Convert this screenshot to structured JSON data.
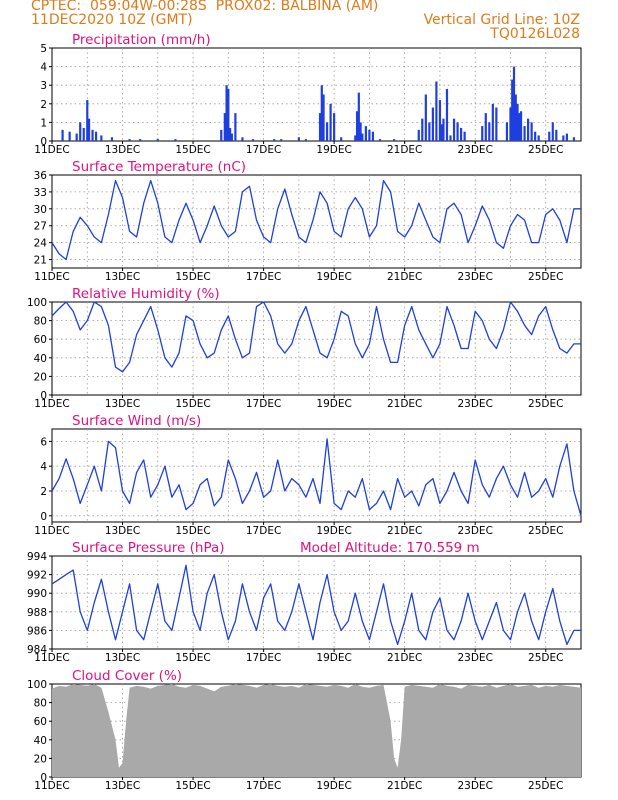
{
  "header": {
    "line1_left": "CPTEC:  059:04W-00:28S  PROX02: BALBINA (AM)",
    "line2_left": "11DEC2020 10Z (GMT)",
    "line2_right": "Vertical Grid Line: 10Z",
    "line3_right": "TQ0126L028"
  },
  "x_tick_labels": [
    "11DEC",
    "13DEC",
    "15DEC",
    "17DEC",
    "19DEC",
    "21DEC",
    "23DEC",
    "25DEC"
  ],
  "colors": {
    "series": "#1f3fe0",
    "title": "#e0127e",
    "header": "#e07a1a",
    "cloud": "#a9a9a9"
  },
  "chart_data": [
    {
      "type": "bar",
      "title": "Precipitation (mm/h)",
      "ylim": [
        0,
        5
      ],
      "yticks": [
        0,
        1,
        2,
        3,
        4,
        5
      ],
      "xlim": [
        0,
        15
      ],
      "x": [
        0.3,
        0.5,
        0.7,
        0.8,
        0.9,
        1.0,
        1.05,
        1.15,
        1.25,
        1.4,
        1.7,
        2.2,
        2.5,
        3.0,
        3.5,
        4.8,
        4.9,
        4.95,
        5.0,
        5.05,
        5.1,
        5.2,
        5.4,
        5.7,
        6.3,
        6.5,
        7.0,
        7.2,
        7.6,
        7.65,
        7.7,
        7.8,
        7.9,
        8.0,
        8.2,
        8.6,
        8.65,
        8.7,
        8.75,
        8.8,
        8.9,
        9.0,
        9.1,
        9.3,
        9.7,
        10.4,
        10.5,
        10.6,
        10.7,
        10.8,
        10.9,
        11.0,
        11.05,
        11.1,
        11.2,
        11.3,
        11.4,
        11.5,
        11.6,
        11.7,
        12.2,
        12.3,
        12.4,
        12.5,
        12.6,
        12.9,
        13.0,
        13.05,
        13.1,
        13.15,
        13.2,
        13.25,
        13.3,
        13.4,
        13.5,
        13.6,
        13.7,
        13.8,
        14.1,
        14.2,
        14.3,
        14.5,
        14.6,
        14.8
      ],
      "values": [
        0.6,
        0.5,
        0.4,
        1.0,
        0.7,
        2.2,
        1.2,
        0.6,
        0.5,
        0.3,
        0.2,
        0.1,
        0.1,
        0.1,
        0.1,
        0.6,
        1.5,
        3.0,
        2.8,
        0.7,
        0.4,
        1.5,
        0.2,
        0.1,
        0.1,
        0.1,
        0.2,
        0.1,
        1.5,
        3.0,
        2.5,
        1.0,
        2.0,
        1.5,
        0.2,
        0.3,
        1.6,
        2.6,
        1.0,
        0.4,
        0.8,
        0.6,
        0.5,
        0.1,
        0.1,
        0.6,
        1.2,
        2.5,
        1.0,
        1.8,
        3.2,
        2.2,
        0.9,
        1.2,
        2.8,
        0.3,
        1.2,
        1.0,
        0.7,
        0.5,
        0.8,
        1.5,
        1.0,
        2.0,
        1.8,
        1.0,
        1.8,
        3.3,
        4.0,
        2.5,
        2.0,
        1.5,
        1.6,
        0.8,
        1.2,
        1.0,
        0.5,
        0.3,
        0.5,
        1.0,
        0.6,
        0.3,
        0.4,
        0.2
      ]
    },
    {
      "type": "line",
      "title": "Surface Temperature (nC)",
      "ylim": [
        19.5,
        36
      ],
      "yticks": [
        21,
        24,
        27,
        30,
        33,
        36
      ],
      "x": [
        0,
        0.2,
        0.4,
        0.6,
        0.8,
        1.0,
        1.2,
        1.4,
        1.6,
        1.8,
        2.0,
        2.2,
        2.4,
        2.6,
        2.8,
        3.0,
        3.2,
        3.4,
        3.6,
        3.8,
        4.0,
        4.2,
        4.4,
        4.6,
        4.8,
        5.0,
        5.2,
        5.4,
        5.6,
        5.8,
        6.0,
        6.2,
        6.4,
        6.6,
        6.8,
        7.0,
        7.2,
        7.4,
        7.6,
        7.8,
        8.0,
        8.2,
        8.4,
        8.6,
        8.8,
        9.0,
        9.2,
        9.4,
        9.6,
        9.8,
        10.0,
        10.2,
        10.4,
        10.6,
        10.8,
        11.0,
        11.2,
        11.4,
        11.6,
        11.8,
        12.0,
        12.2,
        12.4,
        12.6,
        12.8,
        13.0,
        13.2,
        13.4,
        13.6,
        13.8,
        14.0,
        14.2,
        14.4,
        14.6,
        14.8,
        15.0
      ],
      "values": [
        24,
        22,
        21,
        26,
        28.5,
        27,
        25,
        24,
        29,
        35,
        32,
        26,
        25,
        31,
        35,
        31,
        25,
        24,
        28,
        31,
        28,
        24,
        27,
        30.5,
        27,
        25,
        26,
        33,
        34,
        28,
        25,
        24,
        30,
        33.5,
        29,
        25,
        24,
        28,
        33,
        31,
        26,
        25,
        30,
        32,
        30,
        25,
        27,
        35,
        33,
        26,
        25,
        27,
        31,
        28,
        25,
        24,
        30,
        31,
        29,
        24,
        27,
        30.5,
        28,
        24,
        23,
        27,
        29,
        28,
        24,
        24,
        29,
        30,
        28,
        24,
        30,
        30
      ]
    },
    {
      "type": "line",
      "title": "Relative Humidity (%)",
      "ylim": [
        0,
        100
      ],
      "yticks": [
        0,
        20,
        40,
        60,
        80,
        100
      ],
      "x": [
        0,
        0.2,
        0.4,
        0.6,
        0.8,
        1.0,
        1.2,
        1.4,
        1.6,
        1.8,
        2.0,
        2.2,
        2.4,
        2.6,
        2.8,
        3.0,
        3.2,
        3.4,
        3.6,
        3.8,
        4.0,
        4.2,
        4.4,
        4.6,
        4.8,
        5.0,
        5.2,
        5.4,
        5.6,
        5.8,
        6.0,
        6.2,
        6.4,
        6.6,
        6.8,
        7.0,
        7.2,
        7.4,
        7.6,
        7.8,
        8.0,
        8.2,
        8.4,
        8.6,
        8.8,
        9.0,
        9.2,
        9.4,
        9.6,
        9.8,
        10.0,
        10.2,
        10.4,
        10.6,
        10.8,
        11.0,
        11.2,
        11.4,
        11.6,
        11.8,
        12.0,
        12.2,
        12.4,
        12.6,
        12.8,
        13.0,
        13.2,
        13.4,
        13.6,
        13.8,
        14.0,
        14.2,
        14.4,
        14.6,
        14.8,
        15.0
      ],
      "values": [
        85,
        93,
        100,
        90,
        70,
        80,
        100,
        95,
        75,
        30,
        25,
        35,
        65,
        80,
        95,
        70,
        40,
        30,
        45,
        85,
        80,
        55,
        40,
        45,
        70,
        85,
        60,
        40,
        45,
        95,
        100,
        85,
        55,
        45,
        55,
        80,
        95,
        70,
        45,
        40,
        60,
        90,
        85,
        55,
        40,
        55,
        95,
        60,
        35,
        35,
        75,
        95,
        70,
        55,
        40,
        55,
        95,
        75,
        50,
        50,
        90,
        80,
        60,
        50,
        70,
        100,
        90,
        75,
        65,
        85,
        95,
        70,
        50,
        45,
        55,
        55
      ]
    },
    {
      "type": "line",
      "title": "Surface Wind (m/s)",
      "ylim": [
        -0.5,
        7
      ],
      "yticks": [
        0,
        2,
        4,
        6
      ],
      "x": [
        0,
        0.2,
        0.4,
        0.6,
        0.8,
        1.0,
        1.2,
        1.4,
        1.6,
        1.8,
        2.0,
        2.2,
        2.4,
        2.6,
        2.8,
        3.0,
        3.2,
        3.4,
        3.6,
        3.8,
        4.0,
        4.2,
        4.4,
        4.6,
        4.8,
        5.0,
        5.2,
        5.4,
        5.6,
        5.8,
        6.0,
        6.2,
        6.4,
        6.6,
        6.8,
        7.0,
        7.2,
        7.4,
        7.6,
        7.8,
        8.0,
        8.2,
        8.4,
        8.6,
        8.8,
        9.0,
        9.2,
        9.4,
        9.6,
        9.8,
        10.0,
        10.2,
        10.4,
        10.6,
        10.8,
        11.0,
        11.2,
        11.4,
        11.6,
        11.8,
        12.0,
        12.2,
        12.4,
        12.6,
        12.8,
        13.0,
        13.2,
        13.4,
        13.6,
        13.8,
        14.0,
        14.2,
        14.4,
        14.6,
        14.8,
        15.0
      ],
      "values": [
        2.0,
        3.0,
        4.6,
        3.0,
        1.0,
        2.5,
        4.0,
        2.0,
        6.0,
        5.5,
        2.0,
        1.0,
        3.5,
        4.5,
        1.5,
        2.5,
        4.0,
        1.5,
        2.5,
        0.5,
        1.0,
        2.5,
        3.0,
        0.8,
        1.5,
        4.5,
        3.0,
        1.0,
        2.0,
        3.5,
        1.5,
        2.0,
        4.5,
        2.0,
        3.0,
        2.5,
        1.5,
        3.0,
        1.0,
        6.2,
        1.0,
        0.5,
        2.0,
        1.5,
        3.0,
        0.5,
        1.0,
        2.0,
        0.5,
        3.0,
        1.5,
        2.0,
        0.8,
        2.5,
        3.0,
        1.0,
        2.0,
        3.5,
        2.0,
        1.0,
        4.5,
        2.5,
        1.5,
        3.0,
        4.0,
        2.5,
        1.5,
        3.5,
        1.5,
        2.0,
        3.0,
        1.5,
        4.0,
        5.8,
        2.0,
        0.0
      ]
    },
    {
      "type": "line",
      "title": "Surface Pressure (hPa)",
      "annotation": "Model Altitude: 170.559  m",
      "ylim": [
        984,
        994
      ],
      "yticks": [
        984,
        986,
        988,
        990,
        992,
        994
      ],
      "x": [
        0,
        0.2,
        0.4,
        0.6,
        0.8,
        1.0,
        1.2,
        1.4,
        1.6,
        1.8,
        2.0,
        2.2,
        2.4,
        2.6,
        2.8,
        3.0,
        3.2,
        3.4,
        3.6,
        3.8,
        4.0,
        4.2,
        4.4,
        4.6,
        4.8,
        5.0,
        5.2,
        5.4,
        5.6,
        5.8,
        6.0,
        6.2,
        6.4,
        6.6,
        6.8,
        7.0,
        7.2,
        7.4,
        7.6,
        7.8,
        8.0,
        8.2,
        8.4,
        8.6,
        8.8,
        9.0,
        9.2,
        9.4,
        9.6,
        9.8,
        10.0,
        10.2,
        10.4,
        10.6,
        10.8,
        11.0,
        11.2,
        11.4,
        11.6,
        11.8,
        12.0,
        12.2,
        12.4,
        12.6,
        12.8,
        13.0,
        13.2,
        13.4,
        13.6,
        13.8,
        14.0,
        14.2,
        14.4,
        14.6,
        14.8,
        15.0
      ],
      "values": [
        991,
        991.5,
        992,
        992.5,
        988,
        986,
        989,
        991.5,
        988,
        985,
        988,
        991,
        986,
        985,
        988,
        991,
        987,
        986,
        989.5,
        993,
        988,
        986,
        990,
        992,
        988,
        985,
        987,
        991,
        988,
        986,
        989.5,
        991,
        987,
        986,
        988,
        991,
        988,
        985,
        989,
        992,
        988,
        986,
        987,
        990,
        987,
        985,
        988,
        991,
        987,
        984.5,
        987,
        990,
        986,
        985,
        988,
        989.5,
        986,
        985,
        987,
        990,
        987,
        985,
        987,
        989,
        986,
        985,
        988,
        990,
        987,
        985,
        988,
        990.5,
        987,
        984.5,
        986,
        986
      ]
    },
    {
      "type": "area",
      "title": "Cloud Cover (%)",
      "ylim": [
        0,
        100
      ],
      "yticks": [
        0,
        20,
        40,
        60,
        80,
        100
      ],
      "x": [
        0,
        0.2,
        0.4,
        0.6,
        0.8,
        1.0,
        1.2,
        1.4,
        1.6,
        1.8,
        1.9,
        2.0,
        2.1,
        2.2,
        2.4,
        2.6,
        2.8,
        3.0,
        3.2,
        3.4,
        3.6,
        3.8,
        4.0,
        4.2,
        4.4,
        4.6,
        4.8,
        5.0,
        5.2,
        5.4,
        5.6,
        5.8,
        6.0,
        6.2,
        6.4,
        6.6,
        6.8,
        7.0,
        7.2,
        7.4,
        7.6,
        7.8,
        8.0,
        8.2,
        8.4,
        8.6,
        8.8,
        9.0,
        9.2,
        9.4,
        9.6,
        9.7,
        9.8,
        9.9,
        10.0,
        10.2,
        10.4,
        10.6,
        10.8,
        11.0,
        11.2,
        11.4,
        11.6,
        11.8,
        12.0,
        12.2,
        12.4,
        12.6,
        12.8,
        13.0,
        13.2,
        13.4,
        13.6,
        13.8,
        14.0,
        14.2,
        14.4,
        14.6,
        14.8,
        15.0
      ],
      "values": [
        95,
        98,
        97,
        100,
        99,
        98,
        100,
        96,
        70,
        40,
        10,
        15,
        60,
        96,
        98,
        97,
        95,
        98,
        99,
        100,
        97,
        96,
        99,
        98,
        95,
        92,
        97,
        98,
        100,
        99,
        98,
        96,
        99,
        100,
        98,
        97,
        98,
        96,
        100,
        99,
        98,
        97,
        99,
        98,
        96,
        100,
        97,
        96,
        98,
        99,
        60,
        20,
        10,
        40,
        97,
        99,
        98,
        97,
        96,
        100,
        98,
        97,
        95,
        99,
        98,
        97,
        99,
        96,
        98,
        100,
        97,
        98,
        99,
        96,
        98,
        97,
        99,
        98,
        97,
        96
      ]
    }
  ]
}
